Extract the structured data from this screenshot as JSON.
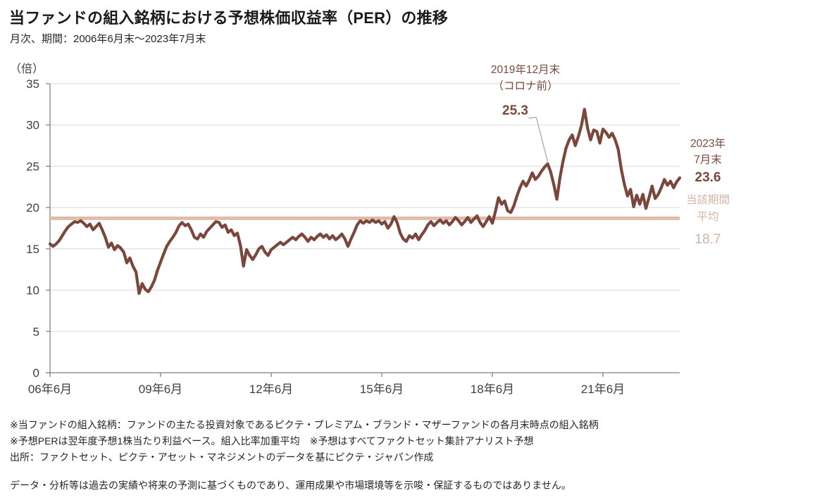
{
  "header": {
    "title": "当ファンドの組入銘柄における予想株価収益率（PER）の推移",
    "subtitle": "月次、期間：2006年6月末～2023年7月末"
  },
  "chart_data": {
    "type": "line",
    "title": "当ファンドの組入銘柄における予想株価収益率（PER）の推移",
    "unit_label": "（倍）",
    "ylim": [
      0,
      35
    ],
    "y_ticks": [
      0,
      5,
      10,
      15,
      20,
      25,
      30,
      35
    ],
    "x_tick_labels": [
      "06年6月",
      "09年6月",
      "12年6月",
      "15年6月",
      "18年6月",
      "21年6月"
    ],
    "x_tick_month_indices": [
      0,
      36,
      72,
      108,
      144,
      180
    ],
    "x_start": "2006年6月末",
    "x_end": "2023年7月末",
    "grid": true,
    "series": [
      {
        "name": "予想株価収益率（PER）",
        "frequency": "monthly",
        "values": [
          15.6,
          15.3,
          15.6,
          16.0,
          16.6,
          17.2,
          17.7,
          18.0,
          18.3,
          18.2,
          18.4,
          18.1,
          17.7,
          18.0,
          17.3,
          17.7,
          18.1,
          17.3,
          16.4,
          15.2,
          15.7,
          14.9,
          15.4,
          15.1,
          14.6,
          13.3,
          13.9,
          12.9,
          12.2,
          9.6,
          10.8,
          10.1,
          9.8,
          10.4,
          11.2,
          12.4,
          13.4,
          14.4,
          15.3,
          15.9,
          16.4,
          17.0,
          17.8,
          18.2,
          17.8,
          18.0,
          17.3,
          16.4,
          16.2,
          16.8,
          16.4,
          17.1,
          17.5,
          17.9,
          18.3,
          18.2,
          17.6,
          17.9,
          17.0,
          17.3,
          16.6,
          16.9,
          15.4,
          12.9,
          14.9,
          14.2,
          13.7,
          14.3,
          15.0,
          15.3,
          14.6,
          14.2,
          14.9,
          15.2,
          15.5,
          15.8,
          15.5,
          15.8,
          16.1,
          16.4,
          16.1,
          16.5,
          16.8,
          16.4,
          15.9,
          16.4,
          16.1,
          16.5,
          16.8,
          16.4,
          16.7,
          16.2,
          16.6,
          16.1,
          16.4,
          16.8,
          16.2,
          15.3,
          16.2,
          17.0,
          17.9,
          18.4,
          18.1,
          18.4,
          18.2,
          18.5,
          18.2,
          18.4,
          18.0,
          18.3,
          17.5,
          18.0,
          18.9,
          18.2,
          16.9,
          16.2,
          15.9,
          16.6,
          16.3,
          16.8,
          16.1,
          16.7,
          17.2,
          17.9,
          18.3,
          17.8,
          18.2,
          18.5,
          18.1,
          18.4,
          17.9,
          18.3,
          18.8,
          18.4,
          17.9,
          18.3,
          18.8,
          18.2,
          18.6,
          19.0,
          18.2,
          17.7,
          18.3,
          18.9,
          18.1,
          19.5,
          21.2,
          20.4,
          20.8,
          19.6,
          19.4,
          20.2,
          21.4,
          22.4,
          23.2,
          22.6,
          23.3,
          24.2,
          23.4,
          23.8,
          24.4,
          24.9,
          25.3,
          24.3,
          22.8,
          21.0,
          23.6,
          25.6,
          27.2,
          28.2,
          28.8,
          27.5,
          28.6,
          29.9,
          31.9,
          29.6,
          28.2,
          29.4,
          29.2,
          27.8,
          29.5,
          29.1,
          28.5,
          29.0,
          28.2,
          27.0,
          24.6,
          22.8,
          21.4,
          22.2,
          20.1,
          21.5,
          20.4,
          21.6,
          19.9,
          21.2,
          22.6,
          21.1,
          21.6,
          22.4,
          23.4,
          22.7,
          23.2,
          22.4,
          23.1,
          23.6
        ]
      }
    ],
    "average": {
      "label_lines": [
        "当該期間",
        "平均"
      ],
      "value": 18.7
    },
    "annotations": [
      {
        "id": "pre-covid-peak",
        "label_lines": [
          "2019年12月末",
          "（コロナ前）"
        ],
        "value": 25.3,
        "month_index": 162
      },
      {
        "id": "latest-value",
        "label_lines": [
          "2023年",
          "7月末"
        ],
        "value": 23.6,
        "month_index": 205
      }
    ],
    "colors": {
      "series": "#7b473c",
      "average": "#dfbbab",
      "annotation_text": "#7b4a3c",
      "average_text": "#d8b2a4",
      "grid": "#d9d9d9",
      "axis": "#7f7f7f",
      "tick_text": "#404040",
      "leader": "#b0b0b0"
    }
  },
  "footnotes": [
    "※当ファンドの組入銘柄：ファンドの主たる投資対象であるピクテ・プレミアム・ブランド・マザーファンドの各月末時点の組入銘柄",
    "※予想PERは翌年度予想1株当たり利益ベース。組入比率加重平均　※予想はすべてファクトセット集計アナリスト予想",
    "出所：ファクトセット、ピクテ・アセット・マネジメントのデータを基にピクテ・ジャパン作成"
  ],
  "disclaimer": "データ・分析等は過去の実績や将来の予測に基づくものであり、運用成果や市場環境等を示唆・保証するものではありません。"
}
